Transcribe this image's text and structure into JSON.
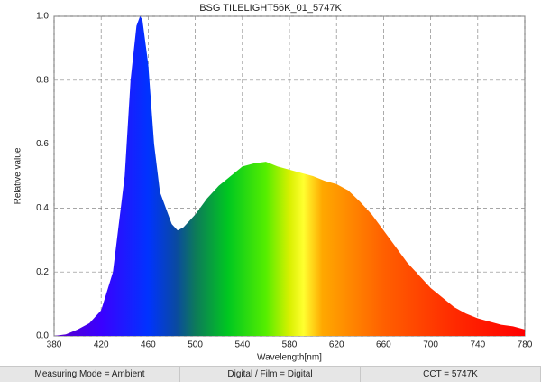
{
  "chart_data": {
    "type": "area",
    "title": "BSG TILELIGHT56K_01_5747K",
    "x_label": "Wavelength[nm]",
    "y_label": "Relative value",
    "x": [
      380,
      390,
      400,
      410,
      420,
      430,
      440,
      445,
      450,
      453,
      455,
      460,
      465,
      470,
      480,
      485,
      490,
      500,
      510,
      520,
      530,
      540,
      550,
      560,
      570,
      580,
      590,
      600,
      610,
      620,
      630,
      640,
      650,
      660,
      670,
      680,
      690,
      700,
      710,
      720,
      730,
      740,
      750,
      760,
      770,
      780
    ],
    "values": [
      0.0,
      0.005,
      0.02,
      0.04,
      0.08,
      0.2,
      0.5,
      0.8,
      0.97,
      1.0,
      0.99,
      0.85,
      0.6,
      0.45,
      0.35,
      0.33,
      0.34,
      0.38,
      0.43,
      0.47,
      0.5,
      0.53,
      0.54,
      0.545,
      0.53,
      0.52,
      0.51,
      0.5,
      0.485,
      0.475,
      0.455,
      0.42,
      0.38,
      0.33,
      0.28,
      0.23,
      0.19,
      0.15,
      0.12,
      0.09,
      0.07,
      0.055,
      0.045,
      0.035,
      0.03,
      0.02
    ],
    "xlim": [
      380,
      780
    ],
    "ylim": [
      0,
      1
    ],
    "xticks": [
      380,
      420,
      460,
      500,
      540,
      580,
      620,
      660,
      700,
      740,
      780
    ],
    "yticks": [
      {
        "value": 0,
        "label": "0.0"
      },
      0.2,
      0.4,
      0.6,
      0.8,
      {
        "value": 1,
        "label": "1.0"
      }
    ],
    "grid": true
  },
  "status_bar": [
    "Measuring Mode = Ambient",
    "Digital / Film = Digital",
    "CCT = 5747K"
  ]
}
